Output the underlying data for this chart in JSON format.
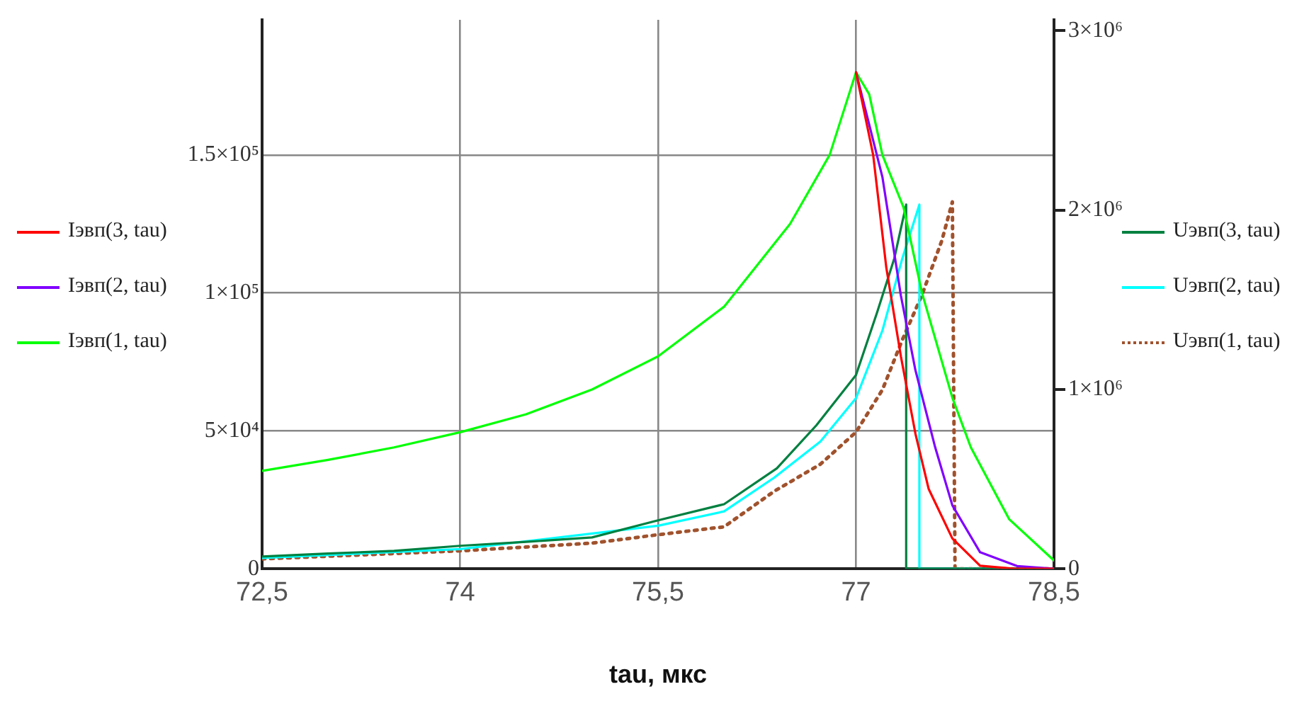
{
  "chart_data": {
    "type": "line",
    "xlabel": "tau, мкс",
    "marker": "none",
    "grid": true,
    "legend": "left",
    "xlim": [
      72.5,
      78.5
    ],
    "xticks": [
      {
        "value": 72.5,
        "label": "72,5"
      },
      74,
      {
        "value": 75.5,
        "label": "75,5"
      },
      77,
      {
        "value": 78.5,
        "label": "78,5"
      }
    ],
    "ylim": [
      0,
      199000
    ],
    "yticks": [
      0,
      {
        "value": 50000,
        "label": "5×10⁴"
      },
      {
        "value": 100000,
        "label": "1×10⁵"
      },
      {
        "value": 150000,
        "label": "1.5×10⁵"
      }
    ],
    "y2lim": [
      0,
      3060000
    ],
    "y2ticks": [
      0,
      {
        "value": 1000000,
        "label": "1×10⁶"
      },
      {
        "value": 2000000,
        "label": "2×10⁶"
      },
      {
        "value": 3000000,
        "label": "3×10⁶"
      }
    ],
    "series": [
      {
        "name": "Iэвп(3, tau)",
        "color": "#ff0000",
        "x": [
          77,
          77.13,
          77.23,
          77.34,
          77.45,
          77.55,
          77.73,
          77.94,
          78.2,
          78.5
        ],
        "values": [
          180000,
          150000,
          109000,
          77000,
          49000,
          29000,
          11000,
          1100,
          0,
          0
        ]
      },
      {
        "name": "Iэвп(2, tau)",
        "color": "#8000ff",
        "x": [
          77,
          77.2,
          77.34,
          77.45,
          77.6,
          77.73,
          77.94,
          78.22,
          78.5
        ],
        "values": [
          180000,
          142000,
          99000,
          72000,
          44000,
          23000,
          6000,
          1000,
          0
        ]
      },
      {
        "name": "Iэвп(1, tau)",
        "color": "#00ff00",
        "x": [
          72.5,
          73,
          73.5,
          74,
          74.5,
          75,
          75.5,
          76,
          76.5,
          76.8,
          77,
          77.1,
          77.2,
          77.36,
          77.5,
          77.73,
          77.87,
          78.16,
          78.5
        ],
        "values": [
          35500,
          39500,
          44000,
          49500,
          56000,
          65000,
          77000,
          95000,
          125000,
          150000,
          180000,
          172000,
          150000,
          131000,
          100000,
          62000,
          44000,
          18000,
          3000
        ]
      },
      {
        "name": "Uэвп(3, tau)",
        "color": "#008040",
        "axis": "y2",
        "x": [
          72.5,
          73,
          73.5,
          74,
          74.5,
          75,
          75.5,
          76,
          76.4,
          76.7,
          77,
          77.16,
          77.29,
          77.38,
          77.38,
          78.5
        ],
        "values": [
          68000,
          85000,
          100000,
          128000,
          150000,
          175000,
          270000,
          360000,
          560000,
          800000,
          1080000,
          1430000,
          1730000,
          2030000,
          0,
          0
        ]
      },
      {
        "name": "Uэвп(2, tau)",
        "color": "#00ffff",
        "axis": "y2",
        "x": [
          72.5,
          74,
          75.5,
          76,
          76.38,
          76.73,
          77,
          77.2,
          77.35,
          77.48,
          77.48,
          78.5
        ],
        "values": [
          60000,
          110000,
          240000,
          320000,
          508000,
          709000,
          951000,
          1328000,
          1728000,
          2030000,
          0,
          0
        ]
      },
      {
        "name": "Uэвп(1, tau)",
        "color": "#a0522d",
        "axis": "y2",
        "line_style": "dotted",
        "x": [
          72.5,
          74,
          75,
          75.5,
          76,
          76.38,
          76.73,
          77,
          77.2,
          77.35,
          77.5,
          77.65,
          77.73,
          77.75,
          78.5
        ],
        "values": [
          55000,
          100000,
          143000,
          190000,
          234000,
          432000,
          583000,
          762000,
          998000,
          1275000,
          1527000,
          1829000,
          2045000,
          0,
          0
        ]
      }
    ]
  }
}
